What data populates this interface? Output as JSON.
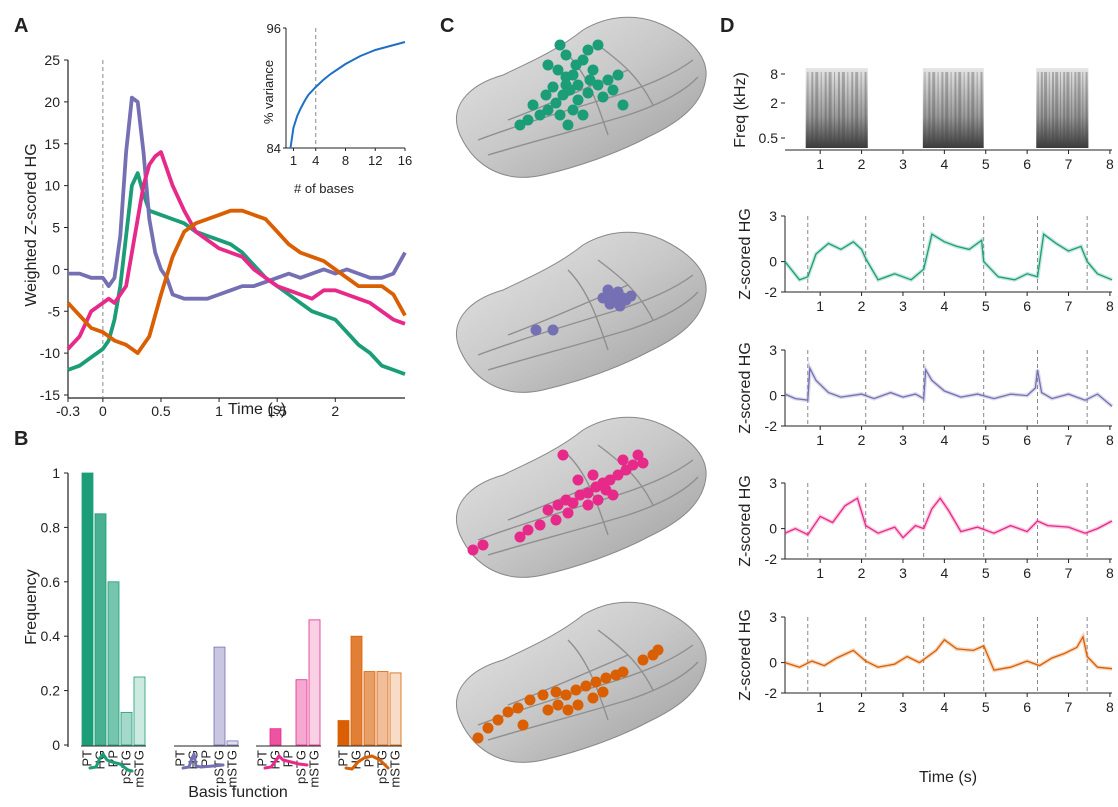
{
  "figure": {
    "panel_labels": [
      "A",
      "B",
      "C",
      "D"
    ]
  },
  "colors": {
    "green": "#1b9e77",
    "purple": "#7570b3",
    "pink": "#e7298a",
    "orange": "#d95f02"
  },
  "chart_data": [
    {
      "id": "A",
      "type": "line",
      "xlabel": "Time (s)",
      "ylabel": "Weighted Z-scored HG",
      "xlim": [
        -0.3,
        2.6
      ],
      "ylim": [
        -15,
        25
      ],
      "xticks": [
        -0.3,
        0,
        0.5,
        1,
        1.5,
        2
      ],
      "xtick_labels": [
        "-0.3",
        "0",
        "0.5",
        "1",
        "1.5",
        "2"
      ],
      "yticks": [
        -15,
        -10,
        -5,
        0,
        5,
        10,
        15,
        20,
        25
      ],
      "ytick_labels": [
        "-15",
        "-10",
        "-5",
        "0",
        "5",
        "10",
        "15",
        "20",
        "25"
      ],
      "vline": 0,
      "series": [
        {
          "color": "#1b9e77",
          "x": [
            -0.3,
            -0.2,
            -0.1,
            0,
            0.05,
            0.1,
            0.15,
            0.2,
            0.25,
            0.3,
            0.35,
            0.4,
            0.5,
            0.6,
            0.7,
            0.8,
            0.9,
            1.0,
            1.1,
            1.2,
            1.3,
            1.4,
            1.5,
            1.6,
            1.7,
            1.8,
            1.9,
            2.0,
            2.1,
            2.2,
            2.3,
            2.4,
            2.5,
            2.6
          ],
          "y": [
            -12,
            -11.5,
            -10.5,
            -9.5,
            -8.5,
            -6,
            -2,
            4,
            10,
            11.5,
            9,
            7,
            6.5,
            6,
            5.5,
            4.5,
            4,
            3.5,
            3,
            2,
            0.5,
            -1,
            -2,
            -3,
            -4,
            -5,
            -5.5,
            -6,
            -7.5,
            -9,
            -10,
            -11.5,
            -12,
            -12.5
          ]
        },
        {
          "color": "#7570b3",
          "x": [
            -0.3,
            -0.2,
            -0.1,
            0,
            0.05,
            0.1,
            0.15,
            0.2,
            0.25,
            0.3,
            0.35,
            0.4,
            0.45,
            0.5,
            0.55,
            0.6,
            0.7,
            0.8,
            0.9,
            1.0,
            1.1,
            1.2,
            1.3,
            1.4,
            1.5,
            1.6,
            1.7,
            1.8,
            1.9,
            2.0,
            2.1,
            2.2,
            2.3,
            2.4,
            2.5,
            2.6
          ],
          "y": [
            -0.5,
            -0.5,
            -1,
            -1,
            -2,
            -1,
            4,
            14,
            20.5,
            20,
            14,
            6,
            2,
            0,
            -1,
            -3,
            -3.5,
            -3.5,
            -3.5,
            -3,
            -2.5,
            -2,
            -2,
            -1.5,
            -1,
            -0.5,
            -1,
            -0.5,
            0,
            -0.5,
            0,
            -0.5,
            -1,
            -1,
            -0.5,
            2
          ]
        },
        {
          "color": "#e7298a",
          "x": [
            -0.3,
            -0.2,
            -0.1,
            0,
            0.05,
            0.1,
            0.2,
            0.25,
            0.3,
            0.35,
            0.4,
            0.45,
            0.5,
            0.55,
            0.6,
            0.7,
            0.8,
            0.9,
            1.0,
            1.1,
            1.2,
            1.3,
            1.4,
            1.5,
            1.6,
            1.7,
            1.8,
            1.9,
            2.0,
            2.1,
            2.2,
            2.3,
            2.4,
            2.5,
            2.6
          ],
          "y": [
            -9.5,
            -8,
            -5,
            -4,
            -3.5,
            -4,
            -2,
            2,
            6,
            10,
            12.5,
            13.5,
            14,
            12,
            10,
            7,
            4.5,
            3.5,
            2.5,
            2,
            1.5,
            0,
            -1,
            -2,
            -2.5,
            -3,
            -3.5,
            -2.5,
            -2.5,
            -3,
            -3.5,
            -4,
            -5,
            -6,
            -6.5
          ]
        },
        {
          "color": "#d95f02",
          "x": [
            -0.3,
            -0.2,
            -0.1,
            0,
            0.1,
            0.2,
            0.3,
            0.4,
            0.5,
            0.6,
            0.7,
            0.8,
            0.9,
            1.0,
            1.1,
            1.2,
            1.3,
            1.4,
            1.5,
            1.6,
            1.7,
            1.8,
            1.9,
            2.0,
            2.1,
            2.2,
            2.3,
            2.4,
            2.5,
            2.6
          ],
          "y": [
            -4,
            -5.5,
            -7,
            -7.5,
            -8.5,
            -9,
            -10,
            -8,
            -3,
            1.5,
            4.5,
            5.5,
            6,
            6.5,
            7,
            7,
            6.5,
            6,
            4.5,
            3,
            2,
            1.5,
            1,
            0,
            -1,
            -2,
            -2,
            -2,
            -3,
            -5.5
          ]
        }
      ]
    },
    {
      "id": "A-inset",
      "type": "line",
      "xlabel": "# of bases",
      "ylabel": "% variance",
      "xlim": [
        0,
        16
      ],
      "ylim": [
        84,
        96
      ],
      "xticks": [
        1,
        4,
        8,
        12,
        16
      ],
      "xtick_labels": [
        "1",
        "4",
        "8",
        "12",
        "16"
      ],
      "yticks": [
        84,
        96
      ],
      "ytick_labels": [
        "84",
        "96"
      ],
      "vline": 4,
      "series": [
        {
          "color": "#1f6fc5",
          "x": [
            0.6,
            1,
            1.5,
            2,
            2.5,
            3,
            4,
            5,
            6,
            7,
            8,
            9,
            10,
            11,
            12,
            13,
            14,
            15,
            16
          ],
          "y": [
            84,
            86,
            87.2,
            88,
            88.7,
            89.3,
            90.1,
            90.8,
            91.4,
            91.9,
            92.4,
            92.8,
            93.2,
            93.5,
            93.8,
            94.0,
            94.2,
            94.4,
            94.6
          ]
        }
      ]
    },
    {
      "id": "B",
      "type": "bar",
      "xlabel": "Basis function",
      "ylabel": "Frequency",
      "ylim": [
        0,
        1
      ],
      "yticks": [
        0,
        0.2,
        0.4,
        0.6,
        0.8,
        1
      ],
      "ytick_labels": [
        "0",
        "0.2",
        "0.4",
        "0.6",
        "0.8",
        "1"
      ],
      "categories": [
        "PT",
        "HG",
        "PP",
        "pSTG",
        "mSTG"
      ],
      "series": [
        {
          "color": "#1b9e77",
          "values": [
            1.0,
            0.85,
            0.6,
            0.12,
            0.25
          ]
        },
        {
          "color": "#7570b3",
          "values": [
            0,
            0,
            0,
            0.36,
            0.015
          ]
        },
        {
          "color": "#e7298a",
          "values": [
            0,
            0.06,
            0,
            0.24,
            0.46
          ]
        },
        {
          "color": "#d95f02",
          "values": [
            0.09,
            0.4,
            0.27,
            0.27,
            0.265
          ]
        }
      ]
    },
    {
      "id": "D-spectrogram",
      "type": "heatmap",
      "ylabel": "Freq (kHz)",
      "ytick_labels": [
        "8",
        "2",
        "0.5"
      ],
      "xticks": [
        1,
        2,
        3,
        4,
        5,
        6,
        7,
        8
      ],
      "xtick_labels": [
        "1",
        "2",
        "3",
        "4",
        "5",
        "6",
        "7",
        "8"
      ]
    },
    {
      "id": "D-timecourses",
      "type": "line",
      "xlabel": "Time (s)",
      "ylabel": "Z-scored HG",
      "xlim": [
        0.15,
        8.05
      ],
      "ylim": [
        -2,
        3
      ],
      "xticks": [
        1,
        2,
        3,
        4,
        5,
        6,
        7,
        8
      ],
      "xtick_labels": [
        "1",
        "2",
        "3",
        "4",
        "5",
        "6",
        "7",
        "8"
      ],
      "yticks": [
        -2,
        0,
        3
      ],
      "ytick_labels": [
        "-2",
        "0",
        "3"
      ],
      "event_lines": [
        0.7,
        2.1,
        3.5,
        4.95,
        6.25,
        7.45
      ],
      "series": [
        {
          "color": "#1b9e77",
          "x": [
            0.15,
            0.5,
            0.7,
            0.9,
            1.2,
            1.5,
            1.8,
            2.0,
            2.1,
            2.4,
            2.8,
            3.2,
            3.5,
            3.7,
            4.0,
            4.3,
            4.6,
            4.9,
            4.95,
            5.3,
            5.7,
            6.0,
            6.25,
            6.4,
            6.7,
            7.0,
            7.3,
            7.45,
            7.7,
            8.05
          ],
          "y": [
            0,
            -1.2,
            -1,
            0.5,
            1.2,
            0.8,
            1.3,
            0.8,
            0.2,
            -1.2,
            -0.8,
            -1.2,
            -0.5,
            1.8,
            1.3,
            1.0,
            0.8,
            1.4,
            0,
            -1,
            -1.2,
            -0.8,
            -1,
            1.8,
            1.2,
            0.7,
            1.0,
            0,
            -0.8,
            -1.2
          ]
        },
        {
          "color": "#7570b3",
          "x": [
            0.15,
            0.4,
            0.7,
            0.75,
            0.9,
            1.2,
            1.5,
            2.0,
            2.3,
            2.7,
            3.0,
            3.3,
            3.5,
            3.55,
            3.7,
            4.0,
            4.4,
            4.8,
            5.2,
            5.6,
            6.0,
            6.2,
            6.25,
            6.35,
            6.6,
            7.0,
            7.4,
            7.7,
            8.05
          ],
          "y": [
            0.1,
            -0.2,
            -0.3,
            1.8,
            1.0,
            0.2,
            -0.1,
            0.1,
            -0.2,
            0.2,
            -0.1,
            0.1,
            -0.2,
            1.7,
            1.0,
            0.3,
            -0.1,
            0.1,
            -0.2,
            0.1,
            0,
            0.5,
            1.7,
            0.2,
            -0.2,
            0.1,
            -0.3,
            0.1,
            -0.7
          ]
        },
        {
          "color": "#e7298a",
          "x": [
            0.15,
            0.4,
            0.7,
            1.0,
            1.3,
            1.6,
            1.9,
            2.1,
            2.4,
            2.8,
            3.0,
            3.3,
            3.5,
            3.7,
            3.9,
            4.1,
            4.4,
            4.8,
            5.2,
            5.6,
            6.0,
            6.25,
            6.5,
            7.0,
            7.4,
            7.7,
            8.05
          ],
          "y": [
            -0.3,
            0,
            -0.4,
            0.8,
            0.4,
            1.5,
            2.0,
            0.2,
            -0.3,
            0.1,
            -0.6,
            0.2,
            0,
            1.3,
            2.0,
            1.2,
            -0.2,
            0.1,
            -0.3,
            0.2,
            -0.2,
            0.5,
            0.2,
            0.1,
            -0.3,
            0,
            0.5
          ]
        },
        {
          "color": "#d95f02",
          "x": [
            0.15,
            0.5,
            0.8,
            1.1,
            1.4,
            1.8,
            2.1,
            2.4,
            2.8,
            3.1,
            3.4,
            3.8,
            4.0,
            4.3,
            4.7,
            4.95,
            5.2,
            5.6,
            6.0,
            6.3,
            6.6,
            6.9,
            7.2,
            7.35,
            7.45,
            7.7,
            8.05
          ],
          "y": [
            0,
            -0.3,
            0.1,
            -0.2,
            0.3,
            0.8,
            0.1,
            -0.3,
            -0.1,
            0.4,
            0.0,
            0.8,
            1.5,
            0.9,
            0.8,
            1.1,
            -0.5,
            -0.3,
            0.1,
            -0.2,
            0.3,
            0.6,
            1.0,
            1.7,
            0.4,
            -0.3,
            -0.4
          ]
        }
      ]
    }
  ]
}
